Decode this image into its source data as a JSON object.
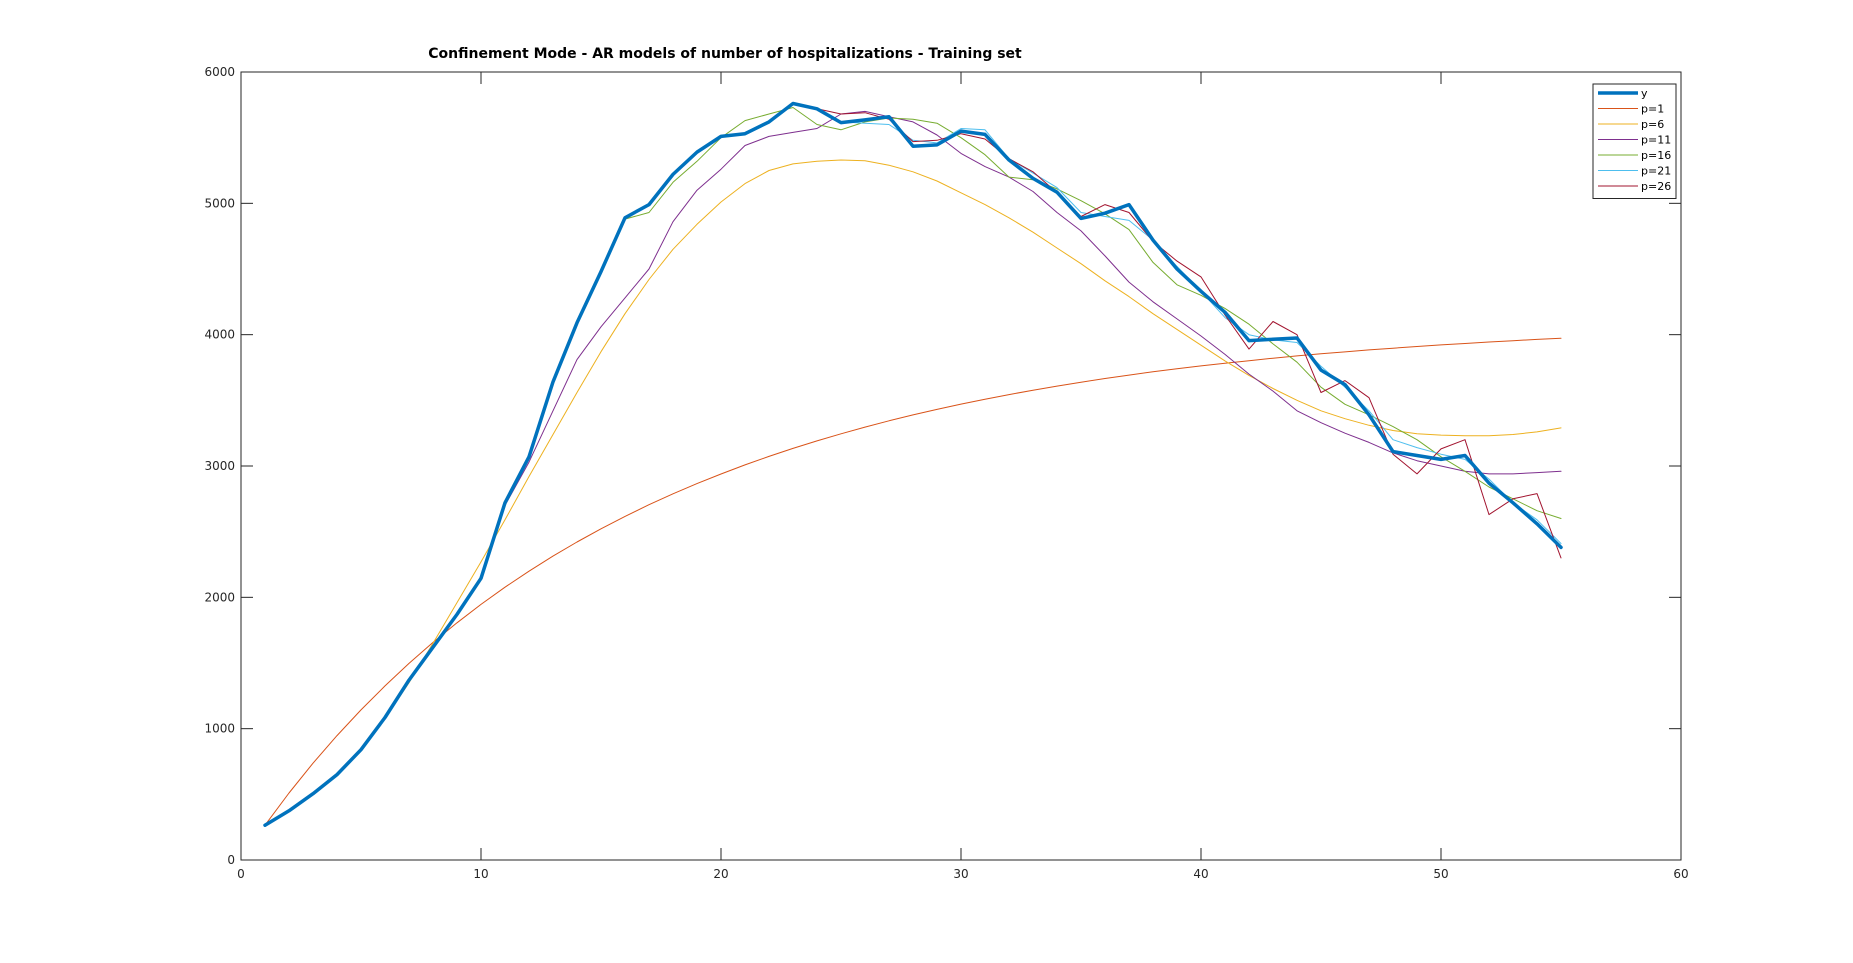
{
  "chart_data": {
    "type": "line",
    "title": "Confinement Mode - AR models of number of hospitalizations - Training set",
    "xlabel": "",
    "ylabel": "",
    "xlim": [
      0,
      60
    ],
    "ylim": [
      0,
      6000
    ],
    "xticks": [
      0,
      10,
      20,
      30,
      40,
      50,
      60
    ],
    "yticks": [
      0,
      1000,
      2000,
      3000,
      4000,
      5000,
      6000
    ],
    "grid": false,
    "legend_position": "top-right",
    "x": [
      1,
      2,
      3,
      4,
      5,
      6,
      7,
      8,
      9,
      10,
      11,
      12,
      13,
      14,
      15,
      16,
      17,
      18,
      19,
      20,
      21,
      22,
      23,
      24,
      25,
      26,
      27,
      28,
      29,
      30,
      31,
      32,
      33,
      34,
      35,
      36,
      37,
      38,
      39,
      40,
      41,
      42,
      43,
      44,
      45,
      46,
      47,
      48,
      49,
      50,
      51,
      52,
      53,
      54,
      55
    ],
    "series": [
      {
        "name": "y",
        "color": "#0072bd",
        "width": 3.5,
        "values": [
          265,
          375,
          505,
          650,
          840,
          1085,
          1370,
          1620,
          1870,
          2145,
          2720,
          3070,
          3640,
          4090,
          4480,
          4890,
          4990,
          5220,
          5390,
          5510,
          5530,
          5620,
          5760,
          5720,
          5615,
          5635,
          5660,
          5435,
          5445,
          5550,
          5525,
          5330,
          5190,
          5085,
          4885,
          4925,
          4990,
          4720,
          4500,
          4330,
          4170,
          3955,
          3965,
          3975,
          3730,
          3620,
          3390,
          3110,
          3080,
          3050,
          3080,
          2870,
          2720,
          2560,
          2380
        ]
      },
      {
        "name": "p=1",
        "color": "#d95319",
        "width": 1,
        "values": [
          265,
          510,
          737,
          947,
          1143,
          1326,
          1497,
          1657,
          1806,
          1946,
          2077,
          2199,
          2314,
          2421,
          2522,
          2616,
          2705,
          2788,
          2866,
          2939,
          3008,
          3073,
          3134,
          3191,
          3245,
          3296,
          3344,
          3389,
          3431,
          3471,
          3509,
          3544,
          3577,
          3608,
          3638,
          3666,
          3692,
          3717,
          3740,
          3762,
          3783,
          3802,
          3821,
          3838,
          3854,
          3869,
          3884,
          3897,
          3910,
          3922,
          3933,
          3944,
          3954,
          3964,
          3973
        ]
      },
      {
        "name": "p=6",
        "color": "#edb120",
        "width": 1,
        "values": [
          265,
          370,
          505,
          660,
          850,
          1080,
          1350,
          1650,
          1960,
          2270,
          2590,
          2920,
          3240,
          3560,
          3870,
          4160,
          4420,
          4650,
          4840,
          5010,
          5150,
          5250,
          5300,
          5320,
          5330,
          5325,
          5290,
          5240,
          5170,
          5080,
          4990,
          4890,
          4780,
          4660,
          4540,
          4410,
          4290,
          4160,
          4040,
          3920,
          3800,
          3690,
          3590,
          3500,
          3420,
          3360,
          3310,
          3270,
          3245,
          3235,
          3230,
          3230,
          3240,
          3260,
          3290
        ]
      },
      {
        "name": "p=11",
        "color": "#7e2f8e",
        "width": 1,
        "values": [
          265,
          375,
          505,
          650,
          840,
          1085,
          1370,
          1620,
          1870,
          2140,
          2700,
          3030,
          3420,
          3810,
          4060,
          4280,
          4500,
          4860,
          5100,
          5260,
          5440,
          5510,
          5540,
          5570,
          5680,
          5700,
          5660,
          5620,
          5520,
          5380,
          5280,
          5200,
          5090,
          4930,
          4790,
          4600,
          4400,
          4250,
          4120,
          3990,
          3850,
          3700,
          3570,
          3420,
          3330,
          3250,
          3180,
          3100,
          3040,
          3000,
          2960,
          2940,
          2940,
          2950,
          2960
        ]
      },
      {
        "name": "p=16",
        "color": "#77ac30",
        "width": 1,
        "values": [
          265,
          375,
          505,
          650,
          840,
          1085,
          1370,
          1620,
          1870,
          2145,
          2720,
          3070,
          3640,
          4090,
          4480,
          4880,
          4930,
          5160,
          5320,
          5500,
          5630,
          5680,
          5730,
          5600,
          5560,
          5620,
          5650,
          5640,
          5610,
          5500,
          5370,
          5200,
          5180,
          5110,
          5020,
          4920,
          4800,
          4550,
          4380,
          4300,
          4200,
          4080,
          3930,
          3790,
          3600,
          3470,
          3390,
          3300,
          3200,
          3070,
          2960,
          2840,
          2750,
          2660,
          2600
        ]
      },
      {
        "name": "p=21",
        "color": "#4dbeee",
        "width": 1,
        "values": [
          265,
          375,
          505,
          650,
          840,
          1085,
          1370,
          1620,
          1870,
          2145,
          2720,
          3070,
          3640,
          4090,
          4480,
          4890,
          4990,
          5220,
          5390,
          5510,
          5530,
          5620,
          5760,
          5720,
          5620,
          5610,
          5600,
          5480,
          5460,
          5570,
          5560,
          5340,
          5230,
          5120,
          4930,
          4900,
          4870,
          4720,
          4520,
          4330,
          4130,
          4000,
          3960,
          3940,
          3760,
          3600,
          3420,
          3200,
          3140,
          3090,
          3050,
          2900,
          2720,
          2590,
          2410
        ]
      },
      {
        "name": "p=26",
        "color": "#a2142f",
        "width": 1,
        "values": [
          265,
          375,
          505,
          650,
          840,
          1085,
          1370,
          1620,
          1870,
          2145,
          2720,
          3070,
          3640,
          4090,
          4480,
          4890,
          4990,
          5220,
          5390,
          5510,
          5530,
          5620,
          5760,
          5720,
          5680,
          5690,
          5640,
          5470,
          5480,
          5530,
          5490,
          5340,
          5240,
          5080,
          4900,
          4990,
          4930,
          4710,
          4560,
          4440,
          4150,
          3890,
          4100,
          4000,
          3560,
          3650,
          3520,
          3090,
          2940,
          3130,
          3200,
          2630,
          2750,
          2790,
          2300
        ]
      }
    ]
  }
}
